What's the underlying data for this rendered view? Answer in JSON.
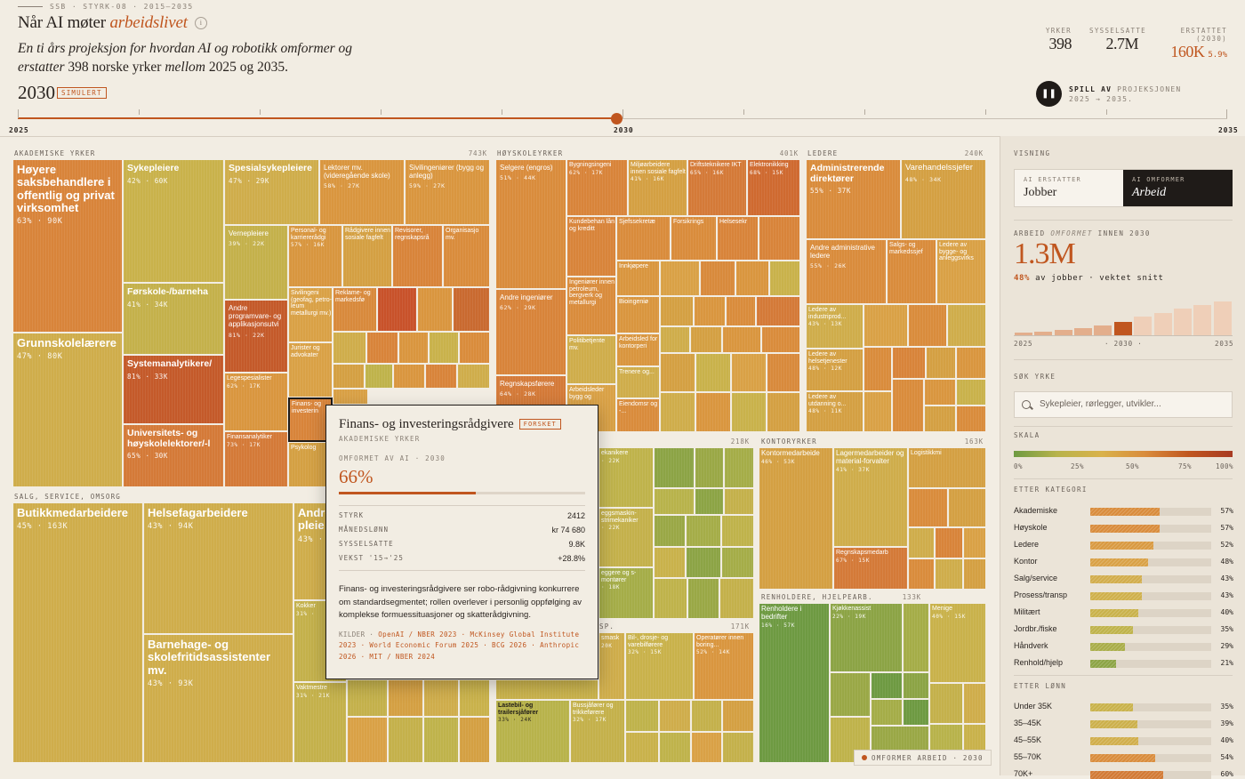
{
  "header": {
    "kicker": "SSB · STYRK-08 · 2015–2035",
    "title_plain": "Når AI møter",
    "title_em": "arbeidslivet",
    "info_symbol": "i",
    "lede_1": "En ti års projeksjon",
    "lede_2": " for hvordan AI og robotikk omformer og erstatter ",
    "lede_3": "398 norske yrker ",
    "lede_4": "mellom",
    "lede_5": " 2025 og 2035.",
    "year": "2030",
    "badge": "SIMULERT"
  },
  "kpis": [
    {
      "label": "YRKER",
      "value": "398"
    },
    {
      "label": "SYSSELSATTE",
      "value": "2.7M"
    },
    {
      "label": "ERSTATTET (2030)",
      "value": "160K",
      "extra": "5.9%"
    }
  ],
  "play": {
    "symbol": "❚❚",
    "bold": "SPILL AV",
    "rest": "PROJEKSJONEN 2025 → 2035."
  },
  "timeline": {
    "start": "2025",
    "current": "2030",
    "end": "2035",
    "progress": 0.5
  },
  "groups": [
    {
      "label": "AKADEMISKE YRKER",
      "count": "743K"
    },
    {
      "label": "HØYSKOLEYRKER",
      "count": "401K"
    },
    {
      "label": "LEDERE",
      "count": "240K"
    },
    {
      "label": "SALG, SERVICE, OMSORG",
      "count": ""
    },
    {
      "label": "",
      "count": "218K"
    },
    {
      "label": "KONTORYRKER",
      "count": "163K"
    },
    {
      "label": "RENHOLDERE, HJELPEARB.",
      "count": "133K"
    },
    {
      "label": "SP.",
      "count": "171K"
    }
  ],
  "cells": {
    "hoyere": {
      "name": "Høyere saksbehandlere i offentlig og privat virksomhet",
      "stat": "63% · 90K"
    },
    "grunnskole": {
      "name": "Grunnskolelærere",
      "stat": "47% · 80K"
    },
    "sykepleiere": {
      "name": "Sykepleiere",
      "stat": "42% · 60K"
    },
    "forskole": {
      "name": "Førskole-/barneha",
      "stat": "41% · 34K"
    },
    "systemanalytiker": {
      "name": "Systemanalytikere/",
      "stat": "81% · 33K"
    },
    "universitet": {
      "name": "Universitets- og høyskolelektorer/-l",
      "stat": "65% · 30K"
    },
    "spesialsyk": {
      "name": "Spesialsykepleiere",
      "stat": "47% · 29K"
    },
    "lektorer": {
      "name": "Lektorer mv. (videregående skole)",
      "stat": "58% · 27K"
    },
    "sivilingbygg": {
      "name": "Sivilingeniører (bygg og anlegg)",
      "stat": "59% · 27K"
    },
    "vernepleiere": {
      "name": "Vernepleiere",
      "stat": "39% · 22K"
    },
    "personal": {
      "name": "Personal- og karriererådgi",
      "stat": "57% · 16K"
    },
    "radgivere": {
      "name": "Rådgivere innen sosiale fagfelt",
      "stat": ""
    },
    "revisorer": {
      "name": "Revisorer, regnskapsrå",
      "stat": ""
    },
    "organisasjon": {
      "name": "Organisasjo mv.",
      "stat": ""
    },
    "andreprog": {
      "name": "Andre programvare- og applikasjonsutvi",
      "stat": "81% · 22K"
    },
    "sivilinggeo": {
      "name": "Sivilingeni (geofag, petro- leum metallurgi mv.)",
      "stat": ""
    },
    "reklame": {
      "name": "Reklame- og markedsfø",
      "stat": ""
    },
    "jurister": {
      "name": "Jurister og advokater",
      "stat": ""
    },
    "legespes": {
      "name": "Legespesialister",
      "stat": "62% · 17K"
    },
    "finans": {
      "name": "Finans- og investerin",
      "stat": ""
    },
    "finansanalytiker": {
      "name": "Finansanalytiker",
      "stat": "73% · 17K"
    },
    "psykolog": {
      "name": "Psykolog",
      "stat": ""
    },
    "selgere": {
      "name": "Selgere (engros)",
      "stat": "51% · 44K"
    },
    "andreing": {
      "name": "Andre ingeniører",
      "stat": "62% · 29K"
    },
    "regnskap": {
      "name": "Regnskapsførere",
      "stat": "64% · 28K"
    },
    "bygningsing": {
      "name": "Bygningsingeni",
      "stat": "62% · 17K"
    },
    "miljo": {
      "name": "Miljøarbeidere innen sosiale fagfelt",
      "stat": "41% · 16K"
    },
    "driftstek": {
      "name": "Driftsteknikere IKT",
      "stat": "65% · 16K"
    },
    "elektronikk": {
      "name": "Elektronikking",
      "stat": "68% · 15K"
    },
    "kundebeh": {
      "name": "Kundebehan lån og kreditt",
      "stat": ""
    },
    "sjefssekr": {
      "name": "Sjefssekretæ",
      "stat": ""
    },
    "forsikring": {
      "name": "Forsikrings",
      "stat": ""
    },
    "helsesekr": {
      "name": "Helsesekr",
      "stat": ""
    },
    "innkjopere": {
      "name": "Innkjøpere",
      "stat": ""
    },
    "ingpetro": {
      "name": "Ingeniører innen petroleum, bergverk og metallurgi",
      "stat": ""
    },
    "bioing": {
      "name": "Bioingeniø",
      "stat": ""
    },
    "politi": {
      "name": "Politibetjente mv.",
      "stat": ""
    },
    "arbeidsled": {
      "name": "Arbeidsled for kontorperi",
      "stat": ""
    },
    "trenere": {
      "name": "Trenere og...",
      "stat": ""
    },
    "arbeidsledbygg": {
      "name": "Arbeidsleder bygg og",
      "stat": ""
    },
    "eiendom": {
      "name": "Eiendomsr og -...",
      "stat": ""
    },
    "admdir": {
      "name": "Administrerende direktører",
      "stat": "55% · 37K"
    },
    "varehandel": {
      "name": "Varehandelssjefer",
      "stat": "48% · 34K"
    },
    "andreadm": {
      "name": "Andre administrative ledere",
      "stat": "55% · 26K"
    },
    "salgsmark": {
      "name": "Salgs- og markedssjef",
      "stat": ""
    },
    "ledbygg": {
      "name": "Ledere av bygge- og anleggsvirks",
      "stat": ""
    },
    "ledind": {
      "name": "Ledere av industriprod...",
      "stat": "43% · 13K"
    },
    "ledhelse": {
      "name": "Ledere av helsetjenester",
      "stat": "48% · 12K"
    },
    "ledutd": {
      "name": "Ledere av utdanning o...",
      "stat": "48% · 11K"
    },
    "butikk": {
      "name": "Butikkmedarbeidere",
      "stat": "45% · 163K"
    },
    "helsefag": {
      "name": "Helsefagarbeidere",
      "stat": "43% · 94K"
    },
    "andrepleie": {
      "name": "Andre pleie",
      "stat": "43% ·"
    },
    "barnehage": {
      "name": "Barnehage- og skolefritidsassistenter mv.",
      "stat": "43% · 93K"
    },
    "kokker": {
      "name": "Kokker",
      "stat": "31% ·"
    },
    "vakt": {
      "name": "Vaktmestre",
      "stat": "31% · 21K"
    },
    "mekanikere": {
      "name": "ekanikere",
      "stat": "· 22K"
    },
    "eggsmaskin": {
      "name": "eggsmaskin- strimekaniker",
      "stat": "· 22K"
    },
    "eggereog": {
      "name": "eggere og s-montører",
      "stat": "· 18K"
    },
    "kontormed": {
      "name": "Kontormedarbeide",
      "stat": "46% · 53K"
    },
    "lagermed": {
      "name": "Lagermedarbeider og material-forvalter",
      "stat": "41% · 37K"
    },
    "logistikk": {
      "name": "Logistikkmi",
      "stat": ""
    },
    "regnskapsmed": {
      "name": "Regnskapsmedarb",
      "stat": "67% · 15K"
    },
    "renholdere": {
      "name": "Renholdere i bedrifter",
      "stat": "16% · 57K"
    },
    "kjokken": {
      "name": "Kjøkkenassist",
      "stat": "22% · 19K"
    },
    "menige": {
      "name": "Menige",
      "stat": "40% · 15K"
    },
    "smask": {
      "name": "smask",
      "stat": "20K"
    },
    "bildrosje": {
      "name": "Bil-, drosje- og varebilførere",
      "stat": "32% · 15K"
    },
    "operatorer": {
      "name": "Operatører innen boring...",
      "stat": "52% · 14K"
    },
    "lastebil": {
      "name": "Lastebil- og trailersjåfører",
      "stat": "33% · 24K"
    },
    "buss": {
      "name": "Bussjåfører og trikkeførere",
      "stat": "32% · 17K"
    }
  },
  "tooltip": {
    "title": "Finans- og investeringsrådgivere",
    "badge": "FORSKET",
    "group": "AKADEMISKE YRKER",
    "metric_label": "OMFORMET AV AI · 2030",
    "pct": "66%",
    "pct_value": 0.66,
    "rows": [
      {
        "k": "STYRK",
        "v": "2412"
      },
      {
        "k": "MÅNEDSLØNN",
        "v": "kr 74 680"
      },
      {
        "k": "SYSSELSATTE",
        "v": "9.8K"
      },
      {
        "k": "VEKST '15→'25",
        "v": "+28.8%"
      }
    ],
    "desc": "Finans- og investeringsrådgivere ser robo-rådgivning konkurrere om standardsegmentet; rollen overlever i personlig oppfølging av komplekse formuessituasjoner og skatterådgivning.",
    "src_label": "KILDER · ",
    "src": "OpenAI / NBER 2023 · McKinsey Global Institute 2023 · World Economic Forum 2025 · BCG 2026 · Anthropic 2026 · MIT / NBER 2024"
  },
  "legend_chip": "OMFORMER ARBEID · 2030",
  "panel": {
    "visning_label": "VISNING",
    "toggle_a_small": "AI ERSTATTER",
    "toggle_a_big": "Jobber",
    "toggle_b_small": "AI OMFORMER",
    "toggle_b_big": "Arbeid",
    "metric_label_1": "ARBEID",
    "metric_label_em": "OMFORMET",
    "metric_label_2": "INNEN 2030",
    "big_number": "1.3M",
    "big_sub_pct": "48%",
    "big_sub_rest": " av jobber · vektet snitt",
    "hist_values": [
      0.06,
      0.09,
      0.13,
      0.17,
      0.23,
      0.32,
      0.45,
      0.55,
      0.65,
      0.74,
      0.82
    ],
    "hist_axis": [
      "2025",
      "· 2030 ·",
      "2035"
    ],
    "search_label": "SØK YRKE",
    "search_placeholder": "Sykepleier, rørlegger, utvikler...",
    "skala_label": "SKALA",
    "scale_ticks": [
      "0%",
      "25%",
      "50%",
      "75%",
      "100%"
    ],
    "kategori_label": "ETTER KATEGORI",
    "categories": [
      {
        "label": "Akademiske",
        "pct": "57%",
        "value": 0.57,
        "color": "#d98c3c"
      },
      {
        "label": "Høyskole",
        "pct": "57%",
        "value": 0.57,
        "color": "#d98c3c"
      },
      {
        "label": "Ledere",
        "pct": "52%",
        "value": 0.52,
        "color": "#d99a42"
      },
      {
        "label": "Kontor",
        "pct": "48%",
        "value": 0.48,
        "color": "#d9a146"
      },
      {
        "label": "Salg/service",
        "pct": "43%",
        "value": 0.43,
        "color": "#d2ad4c"
      },
      {
        "label": "Prosess/transp",
        "pct": "43%",
        "value": 0.43,
        "color": "#cfb04b"
      },
      {
        "label": "Militært",
        "pct": "40%",
        "value": 0.4,
        "color": "#c9b24b"
      },
      {
        "label": "Jordbr./fiske",
        "pct": "35%",
        "value": 0.35,
        "color": "#bfb34b"
      },
      {
        "label": "Håndverk",
        "pct": "29%",
        "value": 0.29,
        "color": "#a9ad48"
      },
      {
        "label": "Renhold/hjelp",
        "pct": "21%",
        "value": 0.21,
        "color": "#8ca445"
      }
    ],
    "lonn_label": "ETTER LØNN",
    "wages": [
      {
        "label": "Under 35K",
        "pct": "35%",
        "value": 0.35,
        "color": "#c9b24b"
      },
      {
        "label": "35–45K",
        "pct": "39%",
        "value": 0.39,
        "color": "#ccb04b"
      },
      {
        "label": "45–55K",
        "pct": "40%",
        "value": 0.4,
        "color": "#d1ae4b"
      },
      {
        "label": "55–70K",
        "pct": "54%",
        "value": 0.54,
        "color": "#d98c3c"
      },
      {
        "label": "70K+",
        "pct": "60%",
        "value": 0.6,
        "color": "#d27a35"
      }
    ]
  }
}
